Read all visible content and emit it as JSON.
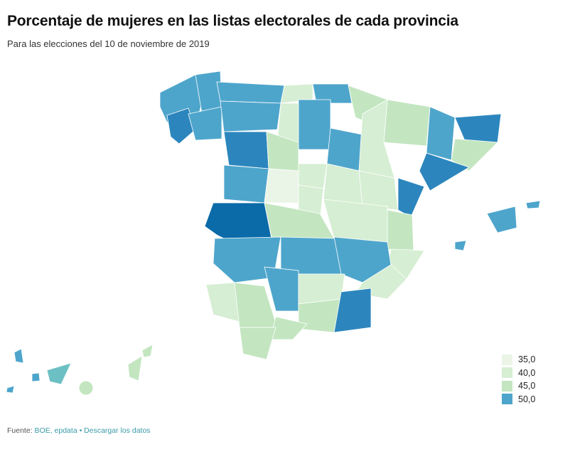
{
  "title": "Porcentaje de mujeres en las listas electorales de cada provincia",
  "subtitle": "Para las elecciones del 10 de noviembre de 2019",
  "legend": [
    {
      "label": "35,0",
      "color": "#eaf5e8"
    },
    {
      "label": "40,0",
      "color": "#d6eed3"
    },
    {
      "label": "45,0",
      "color": "#c3e6c1"
    },
    {
      "label": "50,0",
      "color": "#4ea5cb"
    }
  ],
  "palette": {
    "darkest": "#0b6aa8",
    "dark": "#2c86bd",
    "teal": "#6cc0c4"
  },
  "source": {
    "prefix": "Fuente: ",
    "sources": "BOE, epdata",
    "separator": " • ",
    "download": "Descargar los datos"
  }
}
